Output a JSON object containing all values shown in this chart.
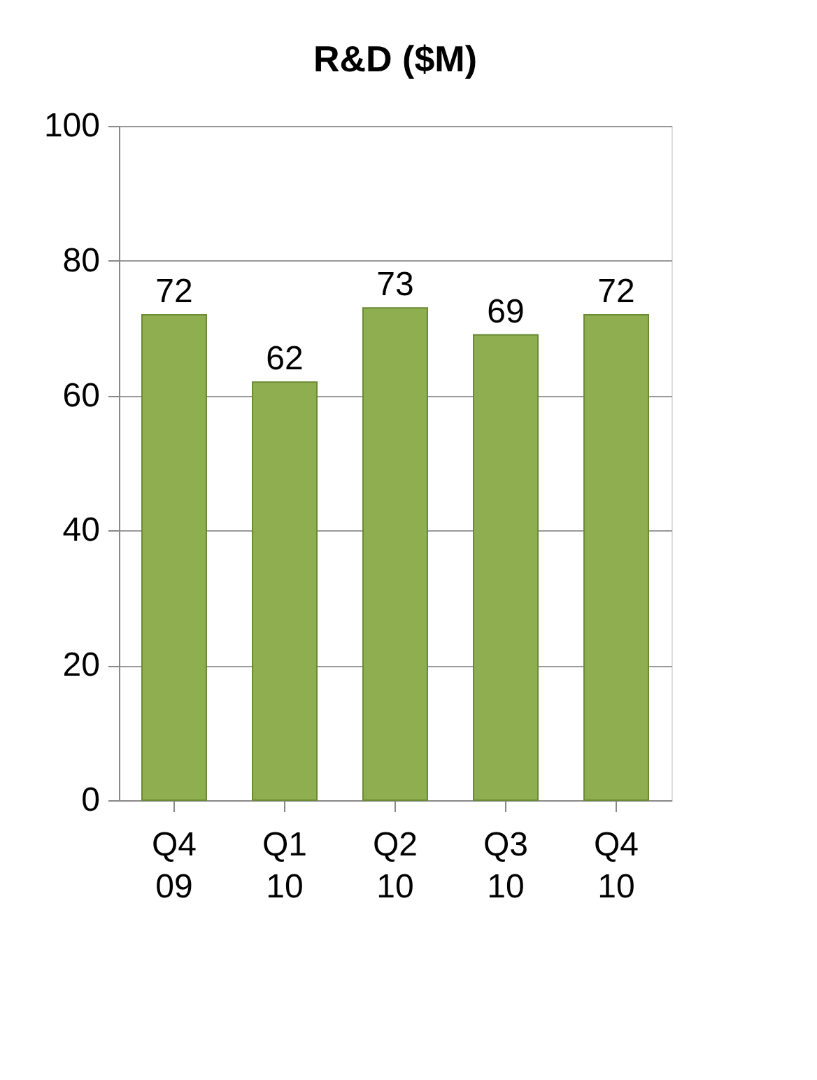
{
  "chart_data": {
    "type": "bar",
    "title": "R&D ($M)",
    "categories": [
      "Q4 09",
      "Q1 10",
      "Q2 10",
      "Q3 10",
      "Q4 10"
    ],
    "values": [
      72,
      62,
      73,
      69,
      72
    ],
    "color": "#8fae4f",
    "ylim": [
      0,
      100
    ],
    "yticks": [
      0,
      20,
      40,
      60,
      80,
      100
    ],
    "grid": "y",
    "data_labels": true
  }
}
